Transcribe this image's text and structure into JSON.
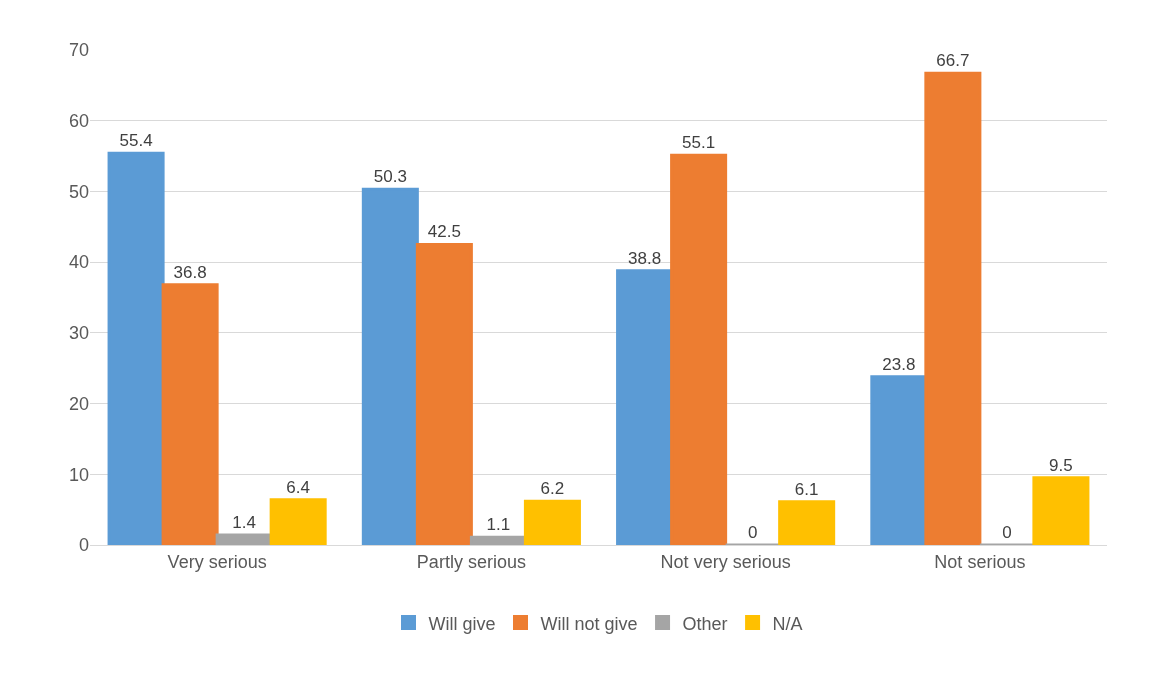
{
  "chart_data": {
    "type": "bar",
    "categories": [
      "Very serious",
      "Partly serious",
      "Not very serious",
      "Not serious"
    ],
    "series": [
      {
        "name": "Will give",
        "color": "#5b9bd5",
        "values": [
          55.4,
          50.3,
          38.8,
          23.8
        ]
      },
      {
        "name": "Will not give",
        "color": "#ed7d31",
        "values": [
          36.8,
          42.5,
          55.1,
          66.7
        ]
      },
      {
        "name": "Other",
        "color": "#a5a5a5",
        "values": [
          1.4,
          1.1,
          0,
          0
        ]
      },
      {
        "name": "N/A",
        "color": "#ffc000",
        "values": [
          6.4,
          6.2,
          6.1,
          9.5
        ]
      }
    ],
    "ylim": [
      0,
      70
    ],
    "yticks": [
      0,
      10,
      20,
      30,
      40,
      50,
      60,
      70
    ],
    "grid": "y",
    "legend": "bottom",
    "data_labels": true
  }
}
